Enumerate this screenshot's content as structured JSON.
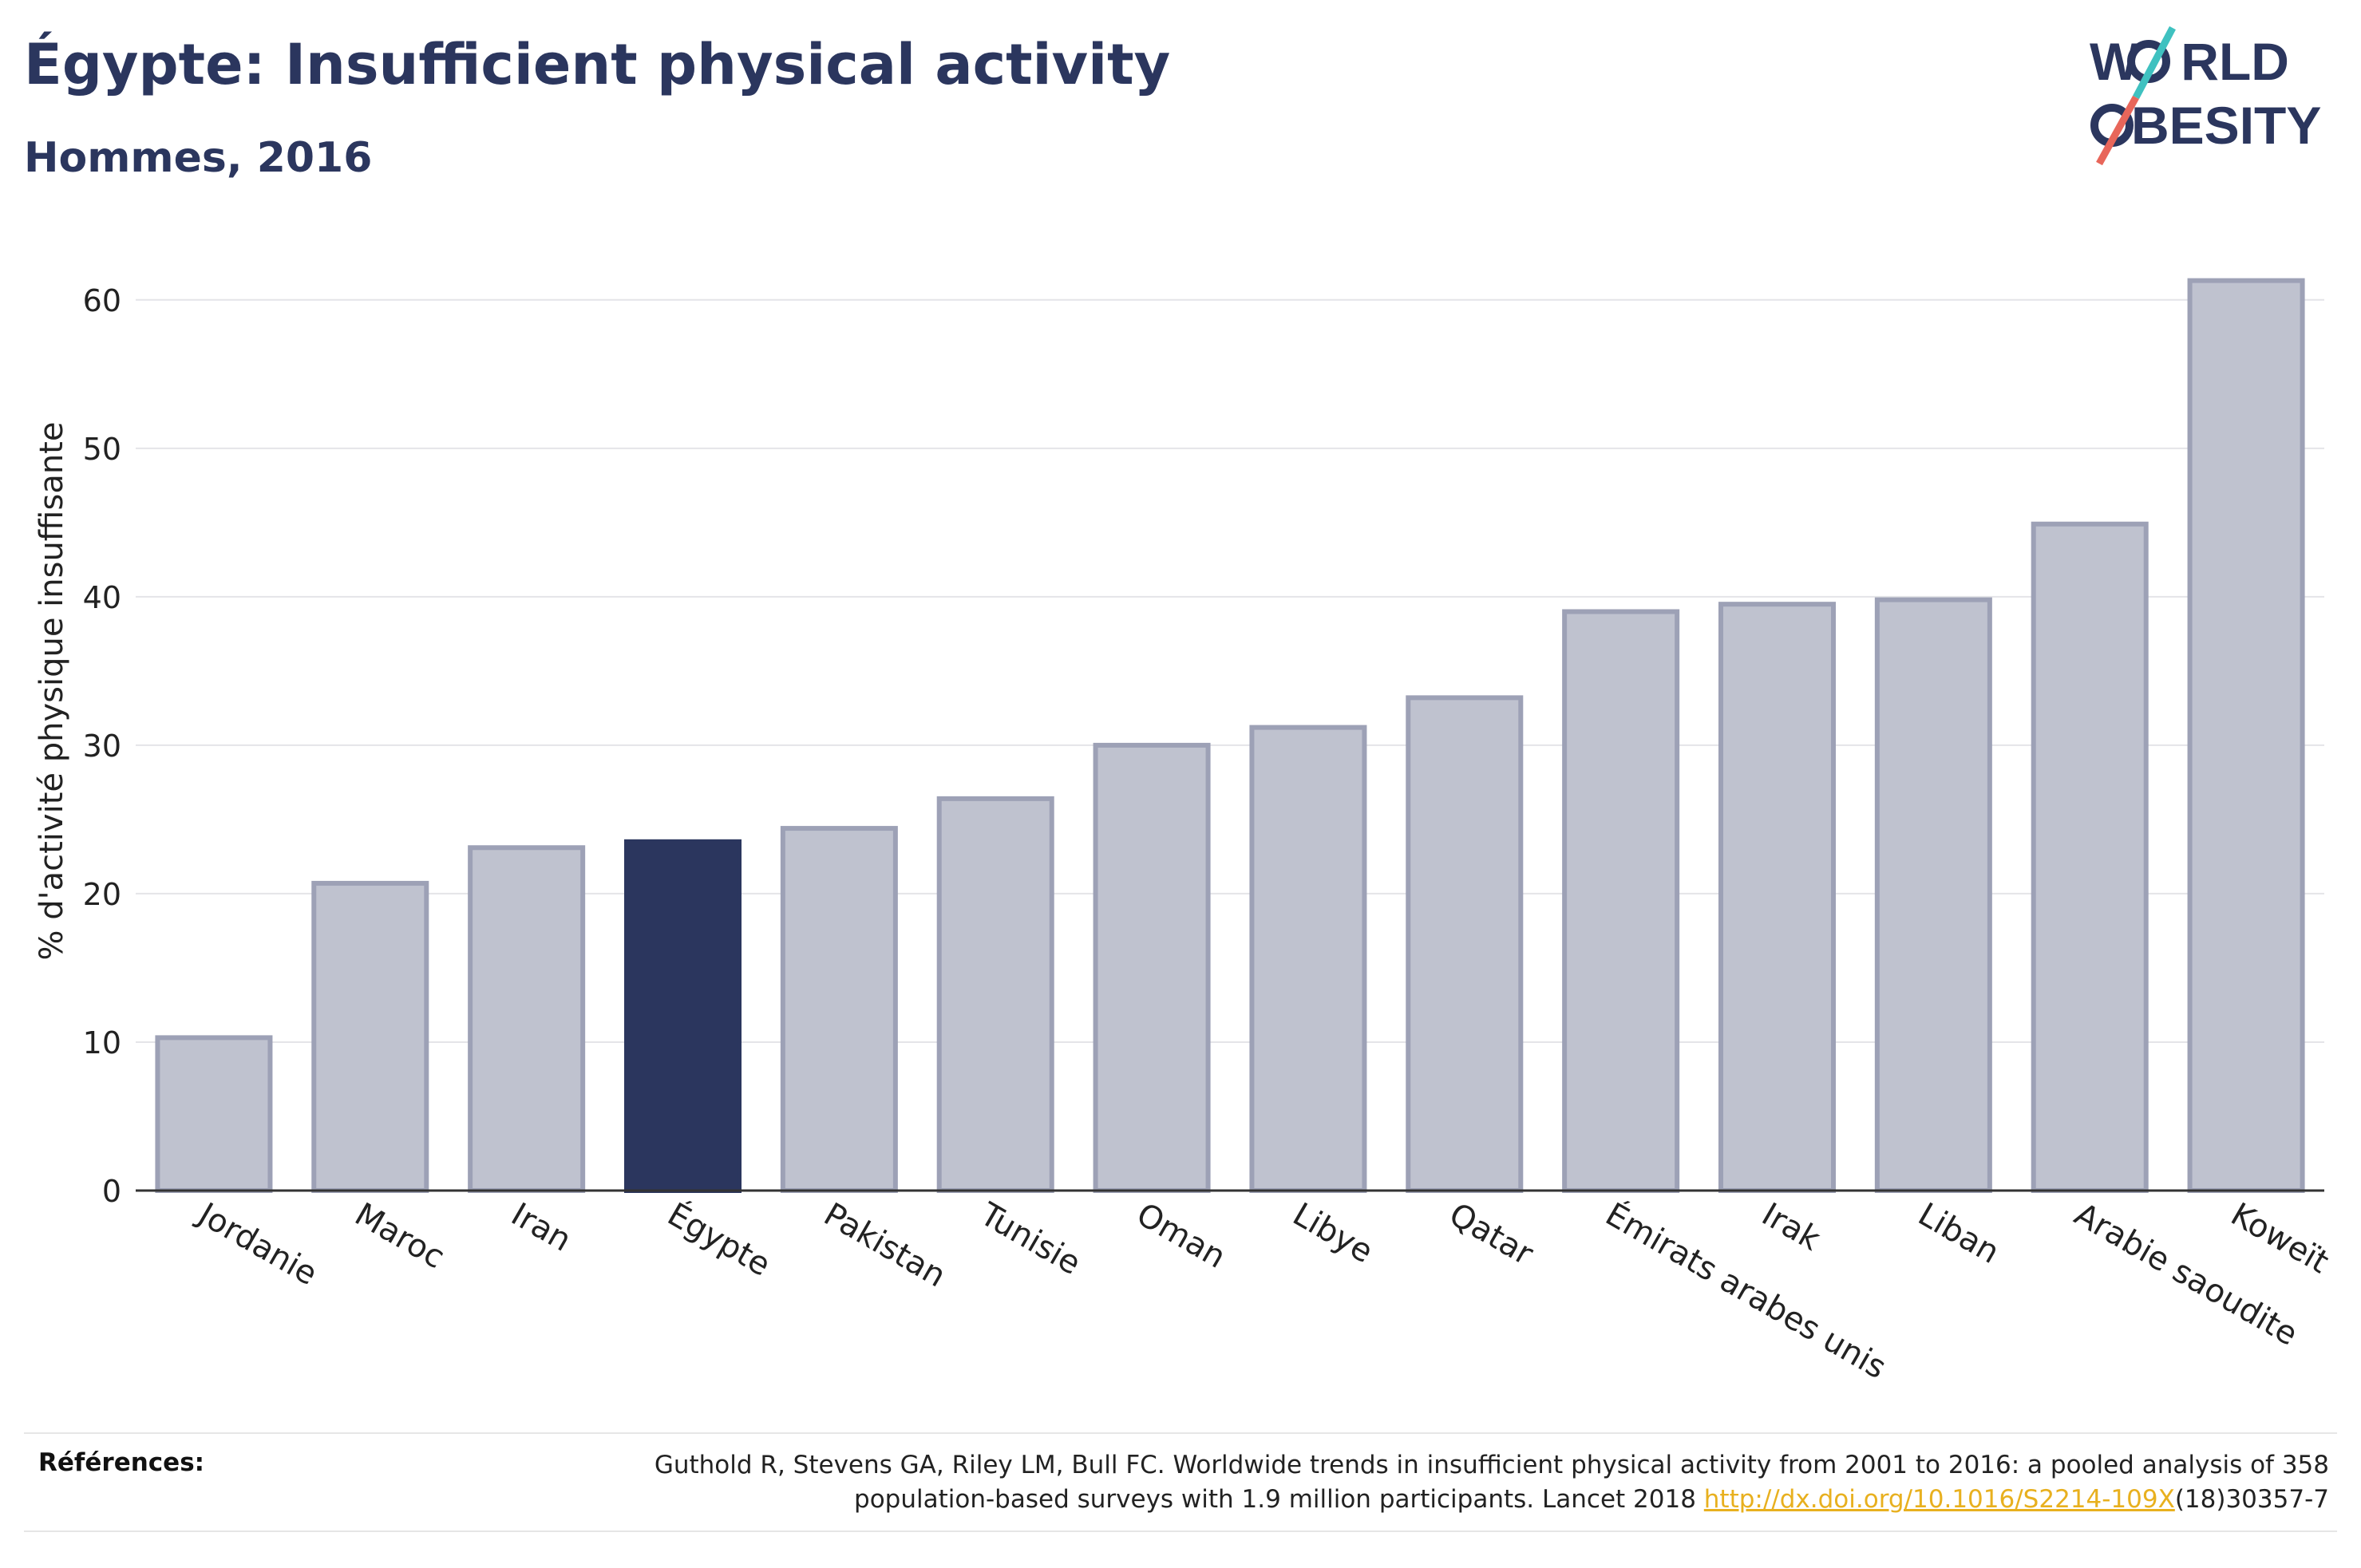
{
  "title": "Égypte: Insufficient physical activity",
  "subtitle": "Hommes, 2016",
  "logo": {
    "line1_a": "W",
    "line1_b": "RLD",
    "line2_a": "O",
    "line2_b": "BESITY"
  },
  "colors": {
    "highlight": "#2b365e",
    "bar_fill": "#bfc2cf",
    "bar_stroke": "#9da1b6",
    "link": "#e8b01f",
    "logo_teal": "#3fc1c0",
    "logo_red": "#e8665a"
  },
  "chart_data": {
    "type": "bar",
    "categories": [
      "Jordanie",
      "Maroc",
      "Iran",
      "Égypte",
      "Pakistan",
      "Tunisie",
      "Oman",
      "Libye",
      "Qatar",
      "Émirats arabes unis",
      "Irak",
      "Liban",
      "Arabie saoudite",
      "Koweït"
    ],
    "values": [
      10.3,
      20.7,
      23.1,
      23.5,
      24.4,
      26.4,
      30.0,
      31.2,
      33.2,
      39.0,
      39.5,
      39.8,
      44.9,
      61.3
    ],
    "highlight": "Égypte",
    "ylabel": "% d'activité physique insuffisante",
    "ylim": [
      0,
      63
    ],
    "yticks": [
      0,
      10,
      20,
      30,
      40,
      50,
      60
    ],
    "grid": true
  },
  "references": {
    "label": "Références:",
    "text_part1": "Guthold R, Stevens GA, Riley LM, Bull FC. Worldwide trends in insufficient physical activity from 2001 to 2016: a pooled analysis of 358 population-based surveys with 1.9 million participants. Lancet 2018 ",
    "link": "http://dx.doi.org/10.1016/S2214-109X",
    "text_part2": "(18)30357-7"
  }
}
